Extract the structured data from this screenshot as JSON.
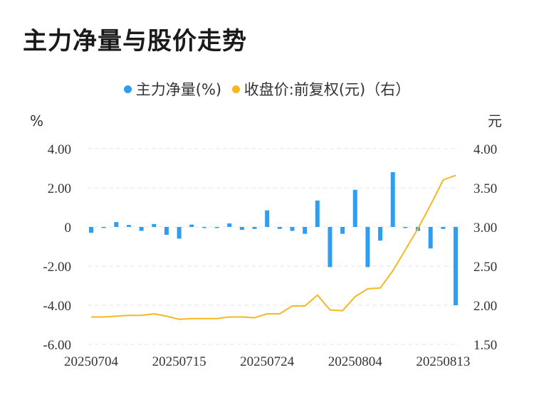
{
  "title": "主力净量与股价走势",
  "legend": {
    "series1": "主力净量(%)",
    "series2": "收盘价:前复权(元)（右）"
  },
  "colors": {
    "bar": "#2e9ff0",
    "line": "#f5b820",
    "grid": "#e6e6e6"
  },
  "chart_data": {
    "type": "bar",
    "title": "主力净量与股价走势",
    "left_axis_unit": "%",
    "right_axis_unit": "元",
    "left_ticks": [
      "4.00",
      "2.00",
      "0",
      "-2.00",
      "-4.00",
      "-6.00"
    ],
    "right_ticks": [
      "4.00",
      "3.50",
      "3.00",
      "2.50",
      "2.00",
      "1.50"
    ],
    "ylim_left": [
      -6,
      4
    ],
    "ylim_right": [
      1.5,
      4
    ],
    "x_tick_labels": [
      "20250704",
      "20250715",
      "20250724",
      "20250804",
      "20250813"
    ],
    "x_tick_index": [
      0,
      7,
      14,
      21,
      28
    ],
    "grid": true,
    "legend_position": "top",
    "series": [
      {
        "name": "主力净量(%)",
        "type": "bar",
        "axis": "left",
        "values": [
          -0.3,
          -0.05,
          0.25,
          0.1,
          -0.2,
          0.15,
          -0.4,
          -0.6,
          0.12,
          -0.05,
          -0.05,
          0.18,
          -0.15,
          -0.1,
          0.85,
          -0.1,
          -0.2,
          -0.35,
          1.35,
          -2.05,
          -0.35,
          1.9,
          -2.05,
          -0.7,
          2.8,
          0.0,
          -0.2,
          -1.1,
          -0.1,
          -4.0
        ]
      },
      {
        "name": "收盘价:前复权(元)（右）",
        "type": "line",
        "axis": "right",
        "values": [
          1.85,
          1.85,
          1.86,
          1.87,
          1.87,
          1.89,
          1.86,
          1.82,
          1.83,
          1.83,
          1.83,
          1.85,
          1.85,
          1.84,
          1.89,
          1.89,
          1.99,
          1.99,
          2.13,
          1.94,
          1.93,
          2.11,
          2.21,
          2.22,
          2.44,
          2.71,
          2.98,
          3.28,
          3.6,
          3.66
        ]
      }
    ]
  }
}
